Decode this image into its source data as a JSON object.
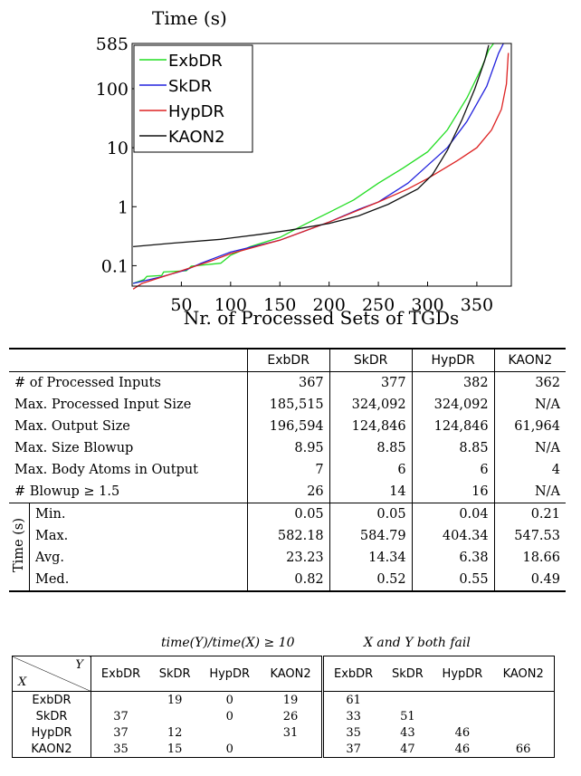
{
  "chart_data": {
    "type": "line",
    "title": "Time (s)",
    "xlabel": "Nr. of Processed Sets of TGDs",
    "ylabel": "",
    "yscale": "log",
    "xlim": [
      0,
      385
    ],
    "ylim": [
      0.045,
      585
    ],
    "x_ticks": [
      50,
      100,
      150,
      200,
      250,
      300,
      350
    ],
    "y_ticks": [
      {
        "value": 585,
        "label": "585"
      },
      {
        "value": 100,
        "label": "100"
      },
      {
        "value": 10,
        "label": "10"
      },
      {
        "value": 1,
        "label": "1"
      },
      {
        "value": 0.1,
        "label": "0.1"
      }
    ],
    "legend_position": "top-left",
    "series": [
      {
        "name": "ExbDR",
        "color": "#22dd22",
        "points": [
          [
            1,
            0.05
          ],
          [
            12,
            0.058
          ],
          [
            15,
            0.066
          ],
          [
            30,
            0.068
          ],
          [
            32,
            0.078
          ],
          [
            55,
            0.082
          ],
          [
            60,
            0.098
          ],
          [
            90,
            0.11
          ],
          [
            100,
            0.15
          ],
          [
            120,
            0.21
          ],
          [
            150,
            0.3
          ],
          [
            175,
            0.5
          ],
          [
            200,
            0.8
          ],
          [
            225,
            1.3
          ],
          [
            250,
            2.5
          ],
          [
            275,
            4.5
          ],
          [
            300,
            8.5
          ],
          [
            320,
            20
          ],
          [
            340,
            70
          ],
          [
            355,
            230
          ],
          [
            362,
            450
          ],
          [
            367,
            585
          ]
        ]
      },
      {
        "name": "SkDR",
        "color": "#2222dd",
        "points": [
          [
            1,
            0.05
          ],
          [
            30,
            0.065
          ],
          [
            55,
            0.085
          ],
          [
            70,
            0.11
          ],
          [
            100,
            0.17
          ],
          [
            150,
            0.27
          ],
          [
            200,
            0.55
          ],
          [
            230,
            0.9
          ],
          [
            250,
            1.2
          ],
          [
            280,
            2.5
          ],
          [
            300,
            5
          ],
          [
            320,
            10
          ],
          [
            340,
            28
          ],
          [
            360,
            110
          ],
          [
            372,
            400
          ],
          [
            377,
            585
          ]
        ]
      },
      {
        "name": "HypDR",
        "color": "#dd2222",
        "points": [
          [
            1,
            0.04
          ],
          [
            10,
            0.05
          ],
          [
            35,
            0.068
          ],
          [
            50,
            0.082
          ],
          [
            80,
            0.12
          ],
          [
            100,
            0.16
          ],
          [
            150,
            0.27
          ],
          [
            200,
            0.55
          ],
          [
            250,
            1.2
          ],
          [
            280,
            2
          ],
          [
            300,
            3
          ],
          [
            330,
            6
          ],
          [
            350,
            10
          ],
          [
            365,
            20
          ],
          [
            375,
            45
          ],
          [
            380,
            120
          ],
          [
            382,
            404
          ]
        ]
      },
      {
        "name": "KAON2",
        "color": "#111111",
        "points": [
          [
            1,
            0.21
          ],
          [
            40,
            0.24
          ],
          [
            90,
            0.28
          ],
          [
            130,
            0.34
          ],
          [
            160,
            0.4
          ],
          [
            200,
            0.52
          ],
          [
            230,
            0.7
          ],
          [
            260,
            1.1
          ],
          [
            290,
            2
          ],
          [
            305,
            3.5
          ],
          [
            320,
            9
          ],
          [
            335,
            30
          ],
          [
            348,
            100
          ],
          [
            358,
            300
          ],
          [
            362,
            548
          ]
        ]
      }
    ]
  },
  "table1": {
    "columns": [
      "ExbDR",
      "SkDR",
      "HypDR",
      "KAON2"
    ],
    "rows": [
      {
        "label": "# of Processed Inputs",
        "values": [
          "367",
          "377",
          "382",
          "362"
        ]
      },
      {
        "label": "Max. Processed Input Size",
        "values": [
          "185,515",
          "324,092",
          "324,092",
          "N/A"
        ]
      },
      {
        "label": "Max. Output Size",
        "values": [
          "196,594",
          "124,846",
          "124,846",
          "61,964"
        ]
      },
      {
        "label": "Max. Size Blowup",
        "values": [
          "8.95",
          "8.85",
          "8.85",
          "N/A"
        ]
      },
      {
        "label": "Max. Body Atoms in Output",
        "values": [
          "7",
          "6",
          "6",
          "4"
        ]
      },
      {
        "label": "# Blowup ≥ 1.5",
        "values": [
          "26",
          "14",
          "16",
          "N/A"
        ]
      }
    ],
    "time_group_label": "Time (s)",
    "time_rows": [
      {
        "label": "Min.",
        "values": [
          "0.05",
          "0.05",
          "0.04",
          "0.21"
        ]
      },
      {
        "label": "Max.",
        "values": [
          "582.18",
          "584.79",
          "404.34",
          "547.53"
        ]
      },
      {
        "label": "Avg.",
        "values": [
          "23.23",
          "14.34",
          "6.38",
          "18.66"
        ]
      },
      {
        "label": "Med.",
        "values": [
          "0.82",
          "0.52",
          "0.55",
          "0.49"
        ]
      }
    ]
  },
  "table2": {
    "caption_left": "time(Y)/time(X) ≥ 10",
    "caption_right": "X and Y both fail",
    "corner_y": "Y",
    "corner_x": "X",
    "columns": [
      "ExbDR",
      "SkDR",
      "HypDR",
      "KAON2"
    ],
    "rows": [
      {
        "label": "ExbDR",
        "left": [
          "",
          "19",
          "0",
          "19"
        ],
        "right": [
          "61",
          "",
          "",
          ""
        ]
      },
      {
        "label": "SkDR",
        "left": [
          "37",
          "",
          "0",
          "26"
        ],
        "right": [
          "33",
          "51",
          "",
          ""
        ]
      },
      {
        "label": "HypDR",
        "left": [
          "37",
          "12",
          "",
          "31"
        ],
        "right": [
          "35",
          "43",
          "46",
          ""
        ]
      },
      {
        "label": "KAON2",
        "left": [
          "35",
          "15",
          "0",
          ""
        ],
        "right": [
          "37",
          "47",
          "46",
          "66"
        ]
      }
    ]
  }
}
